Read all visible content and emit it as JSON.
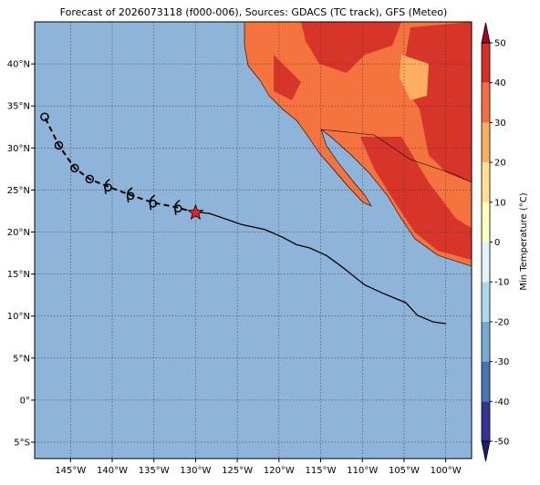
{
  "chart_data": {
    "type": "track-map",
    "title": "Forecast of 2026073118 (f000-006), Sources: GDACS (TC track), GFS (Meteo)",
    "xlim": [
      -149.3,
      -96.9
    ],
    "ylim": [
      -6.95,
      45.0
    ],
    "xticks": [
      {
        "value": -145,
        "label": "145°W"
      },
      {
        "value": -140,
        "label": "140°W"
      },
      {
        "value": -135,
        "label": "135°W"
      },
      {
        "value": -130,
        "label": "130°W"
      },
      {
        "value": -125,
        "label": "125°W"
      },
      {
        "value": -120,
        "label": "120°W"
      },
      {
        "value": -115,
        "label": "115°W"
      },
      {
        "value": -110,
        "label": "110°W"
      },
      {
        "value": -105,
        "label": "105°W"
      },
      {
        "value": -100,
        "label": "100°W"
      }
    ],
    "yticks": [
      {
        "value": -5,
        "label": "5°S"
      },
      {
        "value": 0,
        "label": "0°"
      },
      {
        "value": 5,
        "label": "5°N"
      },
      {
        "value": 10,
        "label": "10°N"
      },
      {
        "value": 15,
        "label": "15°N"
      },
      {
        "value": 20,
        "label": "20°N"
      },
      {
        "value": 25,
        "label": "25°N"
      },
      {
        "value": 30,
        "label": "30°N"
      },
      {
        "value": 35,
        "label": "35°N"
      },
      {
        "value": 40,
        "label": "40°N"
      }
    ],
    "grid": true,
    "series": [
      {
        "name": "past",
        "color": "#000000",
        "style": "solid",
        "x": [
          -130.0,
          -128.3,
          -124.5,
          -121.7,
          -119.6,
          -117.9,
          -116.3,
          -114.3,
          -112.5,
          -109.7,
          -107.5,
          -104.8,
          -103.4,
          -101.5,
          -100.0
        ],
        "y": [
          22.4,
          22.2,
          20.9,
          20.3,
          19.4,
          18.5,
          18.1,
          17.2,
          15.9,
          13.7,
          12.7,
          11.6,
          10.1,
          9.3,
          9.1
        ]
      },
      {
        "name": "forecast",
        "color": "#000000",
        "style": "dashed",
        "x": [
          -130.0,
          -132.1,
          -135.1,
          -137.8,
          -140.5,
          -142.7,
          -144.5,
          -146.4,
          -148.1
        ],
        "y": [
          22.3,
          22.9,
          23.5,
          24.4,
          25.4,
          26.3,
          27.6,
          30.3,
          33.7
        ],
        "symbols": [
          "star",
          "hurricane",
          "hurricane",
          "hurricane",
          "hurricane",
          "circle",
          "circle",
          "circle",
          "circle"
        ]
      }
    ],
    "ocean_color": "#8fb4d9",
    "colorbar": {
      "label": "Min Temperature (°C)",
      "clim": [
        -50,
        50
      ],
      "levels": [
        -50,
        -40,
        -30,
        -20,
        -10,
        0,
        10,
        20,
        30,
        40,
        50
      ],
      "colors": [
        "#313695",
        "#4575b4",
        "#74add1",
        "#abd9e9",
        "#e0f3f8",
        "#ffffbf",
        "#fee090",
        "#fdae61",
        "#f46d43",
        "#d73027"
      ],
      "under": "#1c1f6b",
      "over": "#a50026"
    }
  }
}
